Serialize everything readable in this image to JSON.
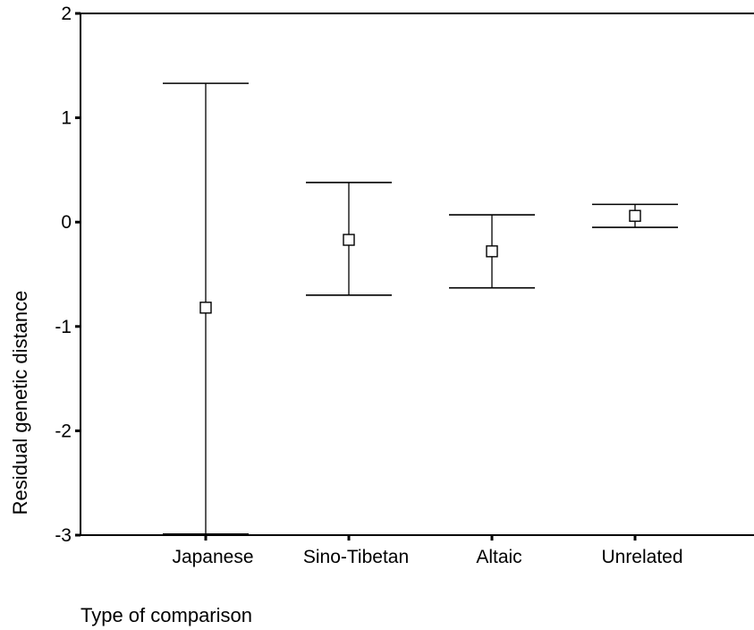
{
  "chart_data": {
    "type": "errorbar",
    "xlabel": "Type of comparison",
    "ylabel": "Residual genetic distance",
    "ylim": [
      -3,
      2
    ],
    "yticks": [
      "2",
      "1",
      "0",
      "-1",
      "-2",
      "-3"
    ],
    "ytick_values": [
      2,
      1,
      0,
      -1,
      -2,
      -3
    ],
    "categories": [
      "Japanese",
      "Sino-Tibetan",
      "Altaic",
      "Unrelated"
    ],
    "points": [
      {
        "category": "Japanese",
        "mean": -0.82,
        "lower": -2.99,
        "upper": 1.33
      },
      {
        "category": "Sino-Tibetan",
        "mean": -0.17,
        "lower": -0.7,
        "upper": 0.38
      },
      {
        "category": "Altaic",
        "mean": -0.28,
        "lower": -0.63,
        "upper": 0.07
      },
      {
        "category": "Unrelated",
        "mean": 0.06,
        "lower": -0.05,
        "upper": 0.17
      }
    ],
    "marker": "open-square",
    "grid": false,
    "colors": {
      "line": "#000000",
      "background": "#ffffff"
    }
  }
}
